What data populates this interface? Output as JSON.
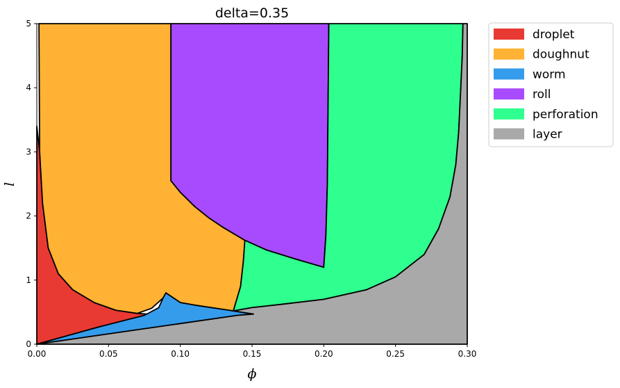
{
  "chart_data": {
    "type": "area",
    "title": "delta=0.35",
    "xlabel": "ϕ",
    "ylabel": "l",
    "xlim": [
      0,
      0.3
    ],
    "ylim": [
      0,
      5
    ],
    "xticks": [
      "0.00",
      "0.05",
      "0.10",
      "0.15",
      "0.20",
      "0.25",
      "0.30"
    ],
    "yticks": [
      "0",
      "1",
      "2",
      "3",
      "4",
      "5"
    ],
    "grid": false,
    "legend_position": "outside-top-right",
    "series": [
      {
        "name": "droplet",
        "color": "#e83a33",
        "boundary": [
          [
            0,
            0
          ],
          [
            0,
            3.4
          ],
          [
            0.002,
            3.0
          ],
          [
            0.004,
            2.2
          ],
          [
            0.008,
            1.5
          ],
          [
            0.015,
            1.1
          ],
          [
            0.025,
            0.85
          ],
          [
            0.04,
            0.65
          ],
          [
            0.055,
            0.53
          ],
          [
            0.07,
            0.48
          ],
          [
            0.09,
            0.45
          ],
          [
            0.045,
            0.28
          ],
          [
            0,
            0
          ]
        ]
      },
      {
        "name": "doughnut",
        "color": "#ffb234",
        "boundary": [
          [
            0.0015,
            5
          ],
          [
            0.0935,
            5
          ],
          [
            0.0935,
            2.55
          ],
          [
            0.1,
            2.37
          ],
          [
            0.11,
            2.15
          ],
          [
            0.12,
            1.97
          ],
          [
            0.13,
            1.82
          ],
          [
            0.145,
            1.62
          ],
          [
            0.144,
            1.3
          ],
          [
            0.142,
            0.9
          ],
          [
            0.137,
            0.52
          ],
          [
            0.11,
            0.61
          ],
          [
            0.1,
            0.65
          ],
          [
            0.09,
            0.8
          ],
          [
            0.088,
            0.72
          ],
          [
            0.08,
            0.56
          ],
          [
            0.07,
            0.48
          ],
          [
            0.055,
            0.53
          ],
          [
            0.04,
            0.65
          ],
          [
            0.025,
            0.85
          ],
          [
            0.015,
            1.1
          ],
          [
            0.008,
            1.5
          ],
          [
            0.004,
            2.2
          ],
          [
            0.002,
            3.0
          ],
          [
            0.0015,
            5
          ]
        ]
      },
      {
        "name": "worm",
        "color": "#359cec",
        "boundary": [
          [
            0,
            0
          ],
          [
            0.045,
            0.28
          ],
          [
            0.075,
            0.45
          ],
          [
            0.085,
            0.57
          ],
          [
            0.088,
            0.72
          ],
          [
            0.09,
            0.8
          ],
          [
            0.1,
            0.65
          ],
          [
            0.11,
            0.61
          ],
          [
            0.137,
            0.52
          ],
          [
            0.151,
            0.47
          ],
          [
            0.14,
            0.45
          ],
          [
            0,
            0
          ]
        ]
      },
      {
        "name": "roll",
        "color": "#a84bff",
        "boundary": [
          [
            0.0935,
            5
          ],
          [
            0.2035,
            5
          ],
          [
            0.2025,
            2.5
          ],
          [
            0.2015,
            1.7
          ],
          [
            0.2,
            1.2
          ],
          [
            0.18,
            1.33
          ],
          [
            0.16,
            1.47
          ],
          [
            0.145,
            1.62
          ],
          [
            0.13,
            1.82
          ],
          [
            0.12,
            1.97
          ],
          [
            0.11,
            2.15
          ],
          [
            0.1,
            2.37
          ],
          [
            0.0935,
            2.55
          ],
          [
            0.0935,
            5
          ]
        ]
      },
      {
        "name": "perforation",
        "color": "#2fff8e",
        "boundary": [
          [
            0.2035,
            5
          ],
          [
            0.297,
            5
          ],
          [
            0.2965,
            4.5
          ],
          [
            0.2955,
            4.0
          ],
          [
            0.294,
            3.3
          ],
          [
            0.292,
            2.8
          ],
          [
            0.288,
            2.3
          ],
          [
            0.28,
            1.8
          ],
          [
            0.27,
            1.4
          ],
          [
            0.25,
            1.05
          ],
          [
            0.23,
            0.85
          ],
          [
            0.2,
            0.7
          ],
          [
            0.17,
            0.62
          ],
          [
            0.15,
            0.57
          ],
          [
            0.137,
            0.52
          ],
          [
            0.142,
            0.9
          ],
          [
            0.144,
            1.3
          ],
          [
            0.145,
            1.62
          ],
          [
            0.16,
            1.47
          ],
          [
            0.18,
            1.33
          ],
          [
            0.2,
            1.2
          ],
          [
            0.2015,
            1.7
          ],
          [
            0.2025,
            2.5
          ],
          [
            0.2035,
            5
          ]
        ]
      },
      {
        "name": "layer",
        "color": "#a9a9a9",
        "boundary": [
          [
            0,
            0
          ],
          [
            0.14,
            0.45
          ],
          [
            0.151,
            0.47
          ],
          [
            0.137,
            0.52
          ],
          [
            0.15,
            0.57
          ],
          [
            0.17,
            0.62
          ],
          [
            0.2,
            0.7
          ],
          [
            0.23,
            0.85
          ],
          [
            0.25,
            1.05
          ],
          [
            0.27,
            1.4
          ],
          [
            0.28,
            1.8
          ],
          [
            0.288,
            2.3
          ],
          [
            0.292,
            2.8
          ],
          [
            0.294,
            3.3
          ],
          [
            0.2955,
            4.0
          ],
          [
            0.2965,
            4.5
          ],
          [
            0.297,
            5
          ],
          [
            0.3,
            5
          ],
          [
            0.3,
            0
          ],
          [
            0,
            0
          ]
        ]
      }
    ]
  }
}
